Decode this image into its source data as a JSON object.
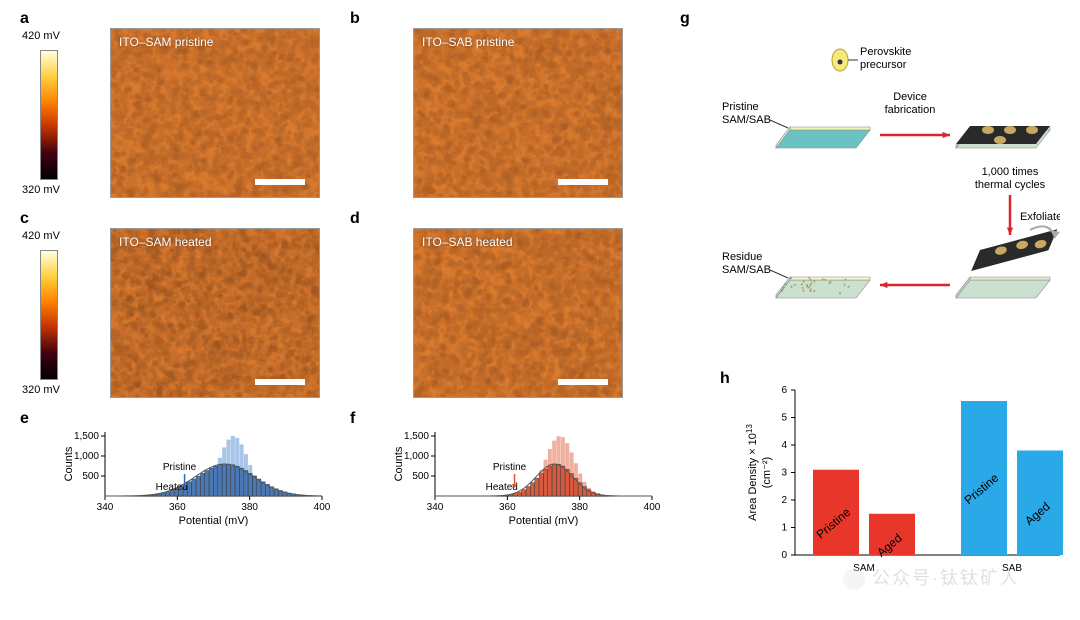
{
  "panels": {
    "a": {
      "letter": "a",
      "label": "ITO–SAM pristine",
      "colorbar_top": "420 mV",
      "colorbar_bottom": "320 mV",
      "bg": "#d97a2e"
    },
    "b": {
      "letter": "b",
      "label": "ITO–SAB pristine",
      "bg": "#d97a2e"
    },
    "c": {
      "letter": "c",
      "label": "ITO–SAM heated",
      "colorbar_top": "420 mV",
      "colorbar_bottom": "320 mV",
      "bg": "#d4742b"
    },
    "d": {
      "letter": "d",
      "label": "ITO–SAB heated",
      "bg": "#d97a2e"
    },
    "e": {
      "letter": "e",
      "ylabel": "Counts",
      "xlabel": "Potential (mV)",
      "xlim": [
        340,
        400
      ],
      "xticks": [
        340,
        360,
        380,
        400
      ],
      "yticks": [
        500,
        1000,
        1500
      ],
      "pristine_label": "Pristine",
      "heated_label": "Heated",
      "pristine_mean": 375,
      "pristine_sd": 4,
      "pristine_color": "#a8c4e8",
      "heated_mean": 373,
      "heated_sd": 8,
      "heated_color": "#4a78b5",
      "arrow_color": "#3a6aad"
    },
    "f": {
      "letter": "f",
      "ylabel": "Counts",
      "xlabel": "Potential (mV)",
      "xlim": [
        340,
        400
      ],
      "xticks": [
        340,
        360,
        380,
        400
      ],
      "yticks": [
        500,
        1000,
        1500
      ],
      "pristine_label": "Pristine",
      "heated_label": "Heated",
      "pristine_mean": 374,
      "pristine_sd": 4,
      "pristine_color": "#f0b0a0",
      "heated_mean": 373,
      "heated_sd": 5,
      "heated_color": "#d85a3e",
      "arrow_color": "#d85a3e"
    },
    "g": {
      "letter": "g",
      "labels": {
        "precursor": "Perovskite\nprecursor",
        "pristine": "Pristine\nSAM/SAB",
        "fabrication": "Device\nfabrication",
        "thermal": "1,000 times\nthermal cycles",
        "exfoliate": "Exfoliate",
        "residue": "Residue\nSAM/SAB"
      },
      "colors": {
        "arrow": "#d8262c",
        "arrow_gray": "#aaaaaa",
        "substrate": "#f3f2a8",
        "substrate_edge": "#6ac2c2",
        "device_top": "#2a2a2a",
        "contact": "#c8a860",
        "residue_dots": "#8a8a30"
      }
    },
    "h": {
      "letter": "h",
      "ylabel_l1": "Area Density × 10",
      "ylabel_sup": "13",
      "ylabel_l2": "(cm⁻²)",
      "ylim": [
        0,
        6
      ],
      "yticks": [
        0,
        1,
        2,
        3,
        4,
        5,
        6
      ],
      "groups": [
        "SAM",
        "SAB"
      ],
      "bars": [
        {
          "group": "SAM",
          "cond": "Pristine",
          "value": 3.1,
          "color": "#e8372a"
        },
        {
          "group": "SAM",
          "cond": "Aged",
          "value": 1.5,
          "color": "#e8372a"
        },
        {
          "group": "SAB",
          "cond": "Pristine",
          "value": 5.6,
          "color": "#2aa8e8"
        },
        {
          "group": "SAB",
          "cond": "Aged",
          "value": 3.8,
          "color": "#2aa8e8"
        }
      ]
    }
  },
  "watermark": "公众号·钛钛矿人"
}
